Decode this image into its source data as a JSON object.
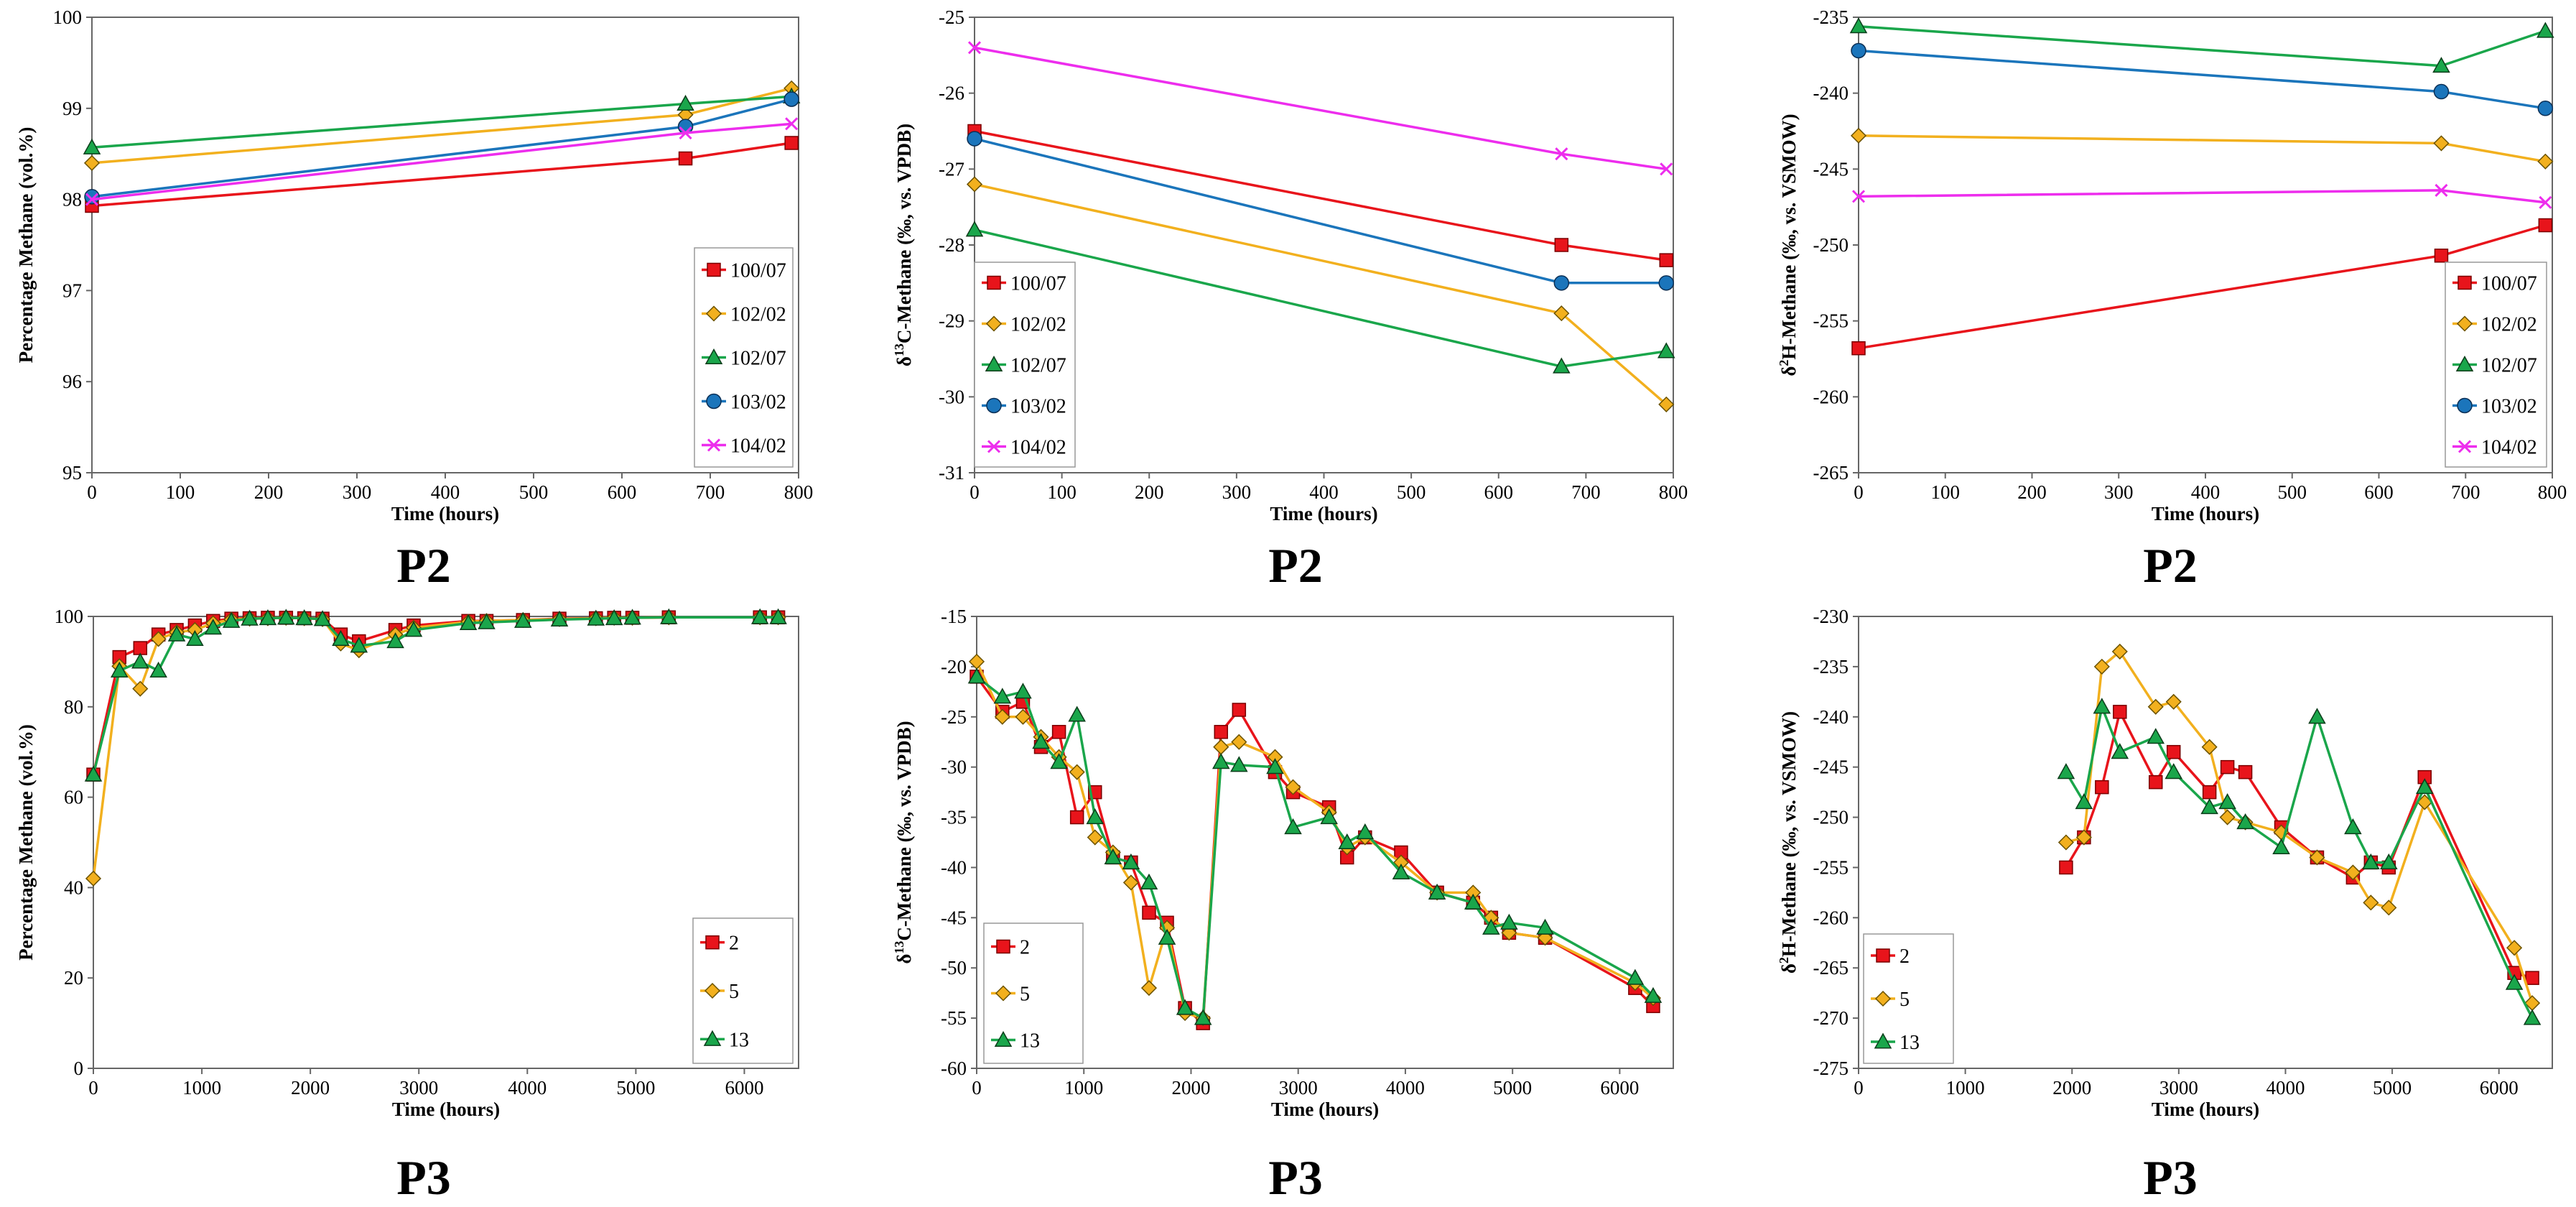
{
  "chart_data": [
    {
      "type": "line",
      "caption": "P2",
      "xlabel": "Time (hours)",
      "ylabel": "Percentage Methane (vol.%)",
      "xlim": [
        0,
        800
      ],
      "xticks": [
        0,
        100,
        200,
        300,
        400,
        500,
        600,
        700,
        800
      ],
      "ylim": [
        95,
        100
      ],
      "yticks": [
        95,
        96,
        97,
        98,
        99,
        100
      ],
      "series": [
        {
          "name": "100/07",
          "color": "#e8141b",
          "marker": "square",
          "x": [
            0,
            672,
            792
          ],
          "y": [
            97.93,
            98.45,
            98.62
          ]
        },
        {
          "name": "102/02",
          "color": "#f2b01e",
          "marker": "diamond",
          "x": [
            0,
            672,
            792
          ],
          "y": [
            98.4,
            98.93,
            99.22
          ]
        },
        {
          "name": "102/07",
          "color": "#1aa64b",
          "marker": "triangle",
          "x": [
            0,
            672,
            792
          ],
          "y": [
            98.57,
            99.05,
            99.13
          ]
        },
        {
          "name": "103/02",
          "color": "#1b75bb",
          "marker": "circle",
          "x": [
            0,
            672,
            792
          ],
          "y": [
            98.03,
            98.8,
            99.1
          ]
        },
        {
          "name": "104/02",
          "color": "#ed2ded",
          "marker": "x",
          "x": [
            0,
            672,
            792
          ],
          "y": [
            98.0,
            98.73,
            98.83
          ]
        }
      ]
    },
    {
      "type": "line",
      "caption": "P2",
      "xlabel": "Time (hours)",
      "ylabel": "δ¹³C-Methane (‰, vs. VPDB)",
      "xlim": [
        0,
        800
      ],
      "xticks": [
        0,
        100,
        200,
        300,
        400,
        500,
        600,
        700,
        800
      ],
      "ylim": [
        -31,
        -25
      ],
      "yticks": [
        -31,
        -30,
        -29,
        -28,
        -27,
        -26,
        -25
      ],
      "series": [
        {
          "name": "100/07",
          "color": "#e8141b",
          "marker": "square",
          "x": [
            0,
            672,
            792
          ],
          "y": [
            -26.5,
            -28.0,
            -28.2
          ]
        },
        {
          "name": "102/02",
          "color": "#f2b01e",
          "marker": "diamond",
          "x": [
            0,
            672,
            792
          ],
          "y": [
            -27.2,
            -28.9,
            -30.1
          ]
        },
        {
          "name": "102/07",
          "color": "#1aa64b",
          "marker": "triangle",
          "x": [
            0,
            672,
            792
          ],
          "y": [
            -27.8,
            -29.6,
            -29.4
          ]
        },
        {
          "name": "103/02",
          "color": "#1b75bb",
          "marker": "circle",
          "x": [
            0,
            672,
            792
          ],
          "y": [
            -26.6,
            -28.5,
            -28.5
          ]
        },
        {
          "name": "104/02",
          "color": "#ed2ded",
          "marker": "x",
          "x": [
            0,
            672,
            792
          ],
          "y": [
            -25.4,
            -26.8,
            -27.0
          ]
        }
      ]
    },
    {
      "type": "line",
      "caption": "P2",
      "xlabel": "Time (hours)",
      "ylabel": "δ²H-Methane (‰, vs. VSMOW)",
      "xlim": [
        0,
        800
      ],
      "xticks": [
        0,
        100,
        200,
        300,
        400,
        500,
        600,
        700,
        800
      ],
      "ylim": [
        -265,
        -235
      ],
      "yticks": [
        -265,
        -260,
        -255,
        -250,
        -245,
        -240,
        -235
      ],
      "series": [
        {
          "name": "100/07",
          "color": "#e8141b",
          "marker": "square",
          "x": [
            0,
            672,
            792
          ],
          "y": [
            -256.8,
            -250.7,
            -248.7
          ]
        },
        {
          "name": "102/02",
          "color": "#f2b01e",
          "marker": "diamond",
          "x": [
            0,
            672,
            792
          ],
          "y": [
            -242.8,
            -243.3,
            -244.5
          ]
        },
        {
          "name": "102/07",
          "color": "#1aa64b",
          "marker": "triangle",
          "x": [
            0,
            672,
            792
          ],
          "y": [
            -235.6,
            -238.2,
            -235.9
          ]
        },
        {
          "name": "103/02",
          "color": "#1b75bb",
          "marker": "circle",
          "x": [
            0,
            672,
            792
          ],
          "y": [
            -237.2,
            -239.9,
            -241.0
          ]
        },
        {
          "name": "104/02",
          "color": "#ed2ded",
          "marker": "x",
          "x": [
            0,
            672,
            792
          ],
          "y": [
            -246.8,
            -246.4,
            -247.2
          ]
        }
      ]
    },
    {
      "type": "line",
      "caption": "P3",
      "xlabel": "Time (hours)",
      "ylabel": "Percentage Methane (vol.%)",
      "xlim": [
        0,
        6500
      ],
      "xticks": [
        0,
        1000,
        2000,
        3000,
        4000,
        5000,
        6000
      ],
      "ylim": [
        0,
        100
      ],
      "yticks": [
        0,
        20,
        40,
        60,
        80,
        100
      ],
      "series": [
        {
          "name": "2",
          "color": "#e8141b",
          "marker": "square",
          "x": [
            0,
            240,
            432,
            600,
            768,
            936,
            1104,
            1272,
            1440,
            1608,
            1776,
            1944,
            2112,
            2280,
            2448,
            2784,
            2952,
            3456,
            3624,
            3960,
            4296,
            4632,
            4800,
            4968,
            5304,
            6144,
            6312
          ],
          "y": [
            65,
            91,
            93,
            96,
            97,
            98,
            99,
            99.5,
            99.6,
            99.7,
            99.7,
            99.6,
            99.5,
            96,
            94.5,
            97,
            98,
            99,
            99,
            99.2,
            99.5,
            99.6,
            99.7,
            99.7,
            99.8,
            99.8,
            99.8
          ]
        },
        {
          "name": "5",
          "color": "#f2b01e",
          "marker": "diamond",
          "x": [
            0,
            240,
            432,
            600,
            768,
            936,
            1104,
            1272,
            1440,
            1608,
            1776,
            1944,
            2112,
            2280,
            2448,
            2784,
            2952,
            3456,
            3624,
            3960,
            4296,
            4632,
            4800,
            4968,
            5304,
            6144,
            6312
          ],
          "y": [
            42,
            89,
            84,
            95,
            96.5,
            97,
            98.5,
            99.3,
            99.5,
            99.6,
            99.7,
            99.6,
            99.4,
            94,
            92.5,
            96,
            97.5,
            98.8,
            99,
            99.2,
            99.4,
            99.6,
            99.7,
            99.7,
            99.8,
            99.8,
            99.8
          ]
        },
        {
          "name": "13",
          "color": "#1aa64b",
          "marker": "triangle",
          "x": [
            0,
            240,
            432,
            600,
            768,
            936,
            1104,
            1272,
            1440,
            1608,
            1776,
            1944,
            2112,
            2280,
            2448,
            2784,
            2952,
            3456,
            3624,
            3960,
            4296,
            4632,
            4800,
            4968,
            5304,
            6144,
            6312
          ],
          "y": [
            65,
            88,
            90,
            88,
            96,
            95,
            97.5,
            99,
            99.5,
            99.6,
            99.7,
            99.6,
            99.4,
            95,
            93.5,
            94.5,
            97,
            98.5,
            98.7,
            99,
            99.3,
            99.5,
            99.6,
            99.7,
            99.8,
            99.8,
            99.8
          ]
        }
      ]
    },
    {
      "type": "line",
      "caption": "P3",
      "xlabel": "Time (hours)",
      "ylabel": "δ¹³C-Methane (‰, vs. VPDB)",
      "xlim": [
        0,
        6500
      ],
      "xticks": [
        0,
        1000,
        2000,
        3000,
        4000,
        5000,
        6000
      ],
      "ylim": [
        -60,
        -15
      ],
      "yticks": [
        -60,
        -55,
        -50,
        -45,
        -40,
        -35,
        -30,
        -25,
        -20,
        -15
      ],
      "series": [
        {
          "name": "2",
          "color": "#e8141b",
          "marker": "square",
          "x": [
            0,
            240,
            432,
            600,
            768,
            936,
            1104,
            1272,
            1440,
            1608,
            1776,
            1944,
            2112,
            2280,
            2448,
            2784,
            2952,
            3288,
            3456,
            3624,
            3960,
            4296,
            4632,
            4800,
            4968,
            5304,
            6144,
            6312
          ],
          "y": [
            -21,
            -24.5,
            -23.5,
            -28,
            -26.5,
            -35,
            -32.5,
            -39,
            -39.5,
            -44.5,
            -45.5,
            -54,
            -55.5,
            -26.5,
            -24.3,
            -30.5,
            -32.5,
            -34,
            -39,
            -37,
            -38.5,
            -42.5,
            -43.5,
            -45,
            -46.5,
            -47,
            -52,
            -53.8
          ]
        },
        {
          "name": "5",
          "color": "#f2b01e",
          "marker": "diamond",
          "x": [
            0,
            240,
            432,
            600,
            768,
            936,
            1104,
            1272,
            1440,
            1608,
            1776,
            1944,
            2112,
            2280,
            2448,
            2784,
            2952,
            3288,
            3456,
            3624,
            3960,
            4296,
            4632,
            4800,
            4968,
            5304,
            6144,
            6312
          ],
          "y": [
            -19.5,
            -25,
            -25,
            -27,
            -29,
            -30.5,
            -37,
            -38.5,
            -41.5,
            -52,
            -46,
            -54.5,
            -55,
            -28,
            -27.5,
            -29,
            -32,
            -34.5,
            -38,
            -37,
            -39.5,
            -42.5,
            -42.5,
            -45,
            -46.5,
            -47,
            -51.5,
            -53
          ]
        },
        {
          "name": "13",
          "color": "#1aa64b",
          "marker": "triangle",
          "x": [
            0,
            240,
            432,
            600,
            768,
            936,
            1104,
            1272,
            1440,
            1608,
            1776,
            1944,
            2112,
            2280,
            2448,
            2784,
            2952,
            3288,
            3456,
            3624,
            3960,
            4296,
            4632,
            4800,
            4968,
            5304,
            6144,
            6312
          ],
          "y": [
            -21,
            -23,
            -22.5,
            -27.5,
            -29.5,
            -24.8,
            -35,
            -39,
            -39.5,
            -41.5,
            -47,
            -54,
            -55,
            -29.5,
            -29.8,
            -30,
            -36,
            -35,
            -37.5,
            -36.5,
            -40.5,
            -42.5,
            -43.5,
            -46,
            -45.5,
            -46,
            -51,
            -52.8
          ]
        }
      ]
    },
    {
      "type": "line",
      "caption": "P3",
      "xlabel": "Time (hours)",
      "ylabel": "δ²H-Methane (‰, vs. VSMOW)",
      "xlim": [
        0,
        6500
      ],
      "xticks": [
        0,
        1000,
        2000,
        3000,
        4000,
        5000,
        6000
      ],
      "ylim": [
        -275,
        -230
      ],
      "yticks": [
        -275,
        -270,
        -265,
        -260,
        -255,
        -250,
        -245,
        -240,
        -235,
        -230
      ],
      "series": [
        {
          "name": "2",
          "color": "#e8141b",
          "marker": "square",
          "x": [
            1944,
            2112,
            2280,
            2448,
            2784,
            2952,
            3288,
            3456,
            3624,
            3960,
            4296,
            4632,
            4800,
            4968,
            5304,
            6144,
            6312
          ],
          "y": [
            -255,
            -252,
            -247,
            -239.5,
            -246.5,
            -243.5,
            -247.5,
            -245,
            -245.5,
            -251,
            -254,
            -256,
            -254.5,
            -255,
            -246,
            -265.5,
            -266
          ]
        },
        {
          "name": "5",
          "color": "#f2b01e",
          "marker": "diamond",
          "x": [
            1944,
            2112,
            2280,
            2448,
            2784,
            2952,
            3288,
            3456,
            3624,
            3960,
            4296,
            4632,
            4800,
            4968,
            5304,
            6144,
            6312
          ],
          "y": [
            -252.5,
            -252,
            -235,
            -233.5,
            -239,
            -238.5,
            -243,
            -250,
            -250.5,
            -251.5,
            -254,
            -255.5,
            -258.5,
            -259,
            -248.5,
            -263,
            -268.5
          ]
        },
        {
          "name": "13",
          "color": "#1aa64b",
          "marker": "triangle",
          "x": [
            1944,
            2112,
            2280,
            2448,
            2784,
            2952,
            3288,
            3456,
            3624,
            3960,
            4296,
            4632,
            4800,
            4968,
            5304,
            6144,
            6312
          ],
          "y": [
            -245.5,
            -248.5,
            -239,
            -243.5,
            -242,
            -245.5,
            -249,
            -248.5,
            -250.5,
            -253,
            -240,
            -251,
            -254.5,
            -254.5,
            -247,
            -266.5,
            -270
          ]
        }
      ]
    }
  ]
}
